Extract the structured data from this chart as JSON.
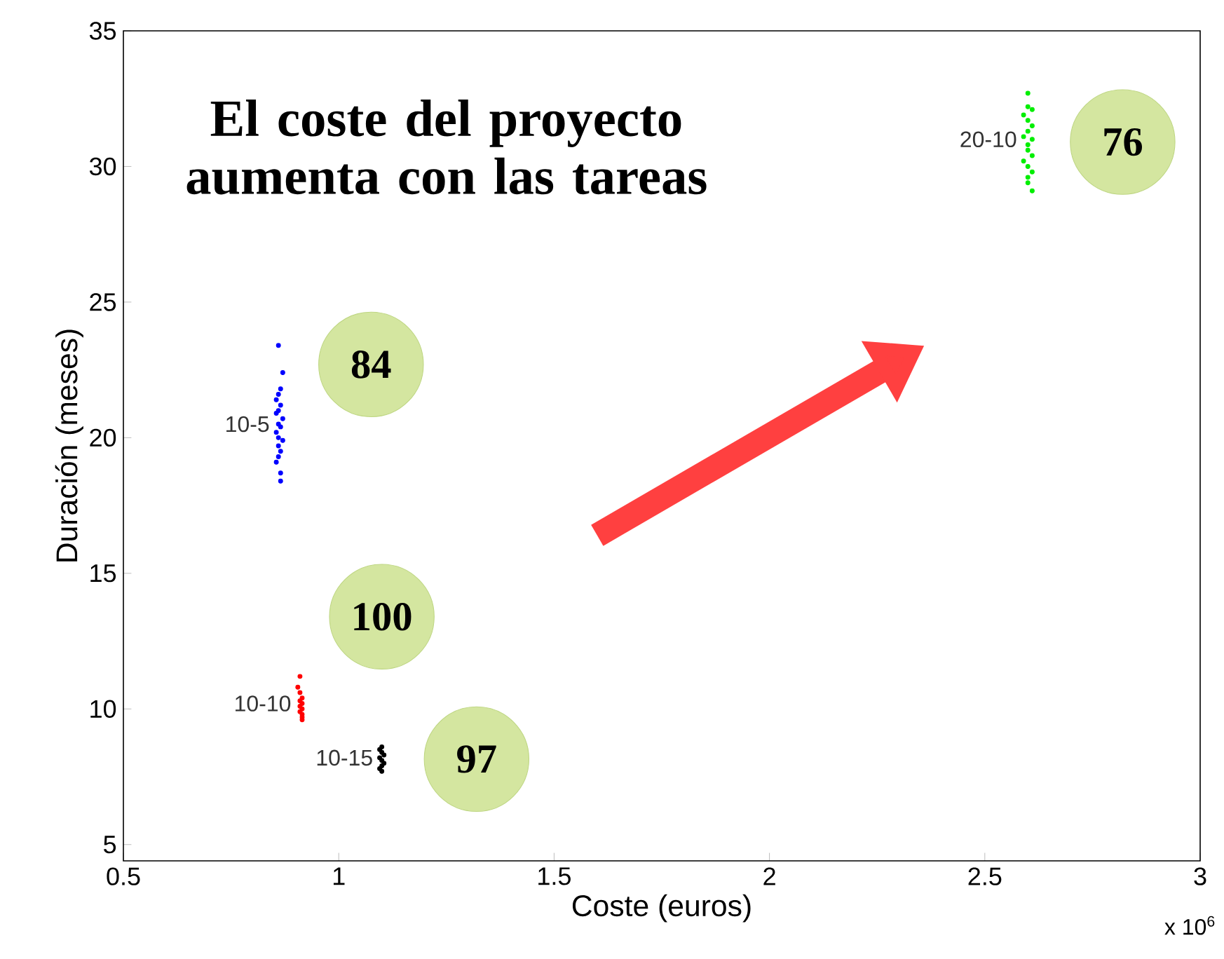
{
  "chart_data": {
    "type": "scatter",
    "title": "El coste del proyecto aumenta con las tareas",
    "xlabel": "Coste (euros)",
    "ylabel": "Duración (meses)",
    "xlim": [
      0.5,
      3
    ],
    "ylim": [
      4.4,
      35
    ],
    "xticks": [
      0.5,
      1,
      1.5,
      2,
      2.5,
      3
    ],
    "yticks": [
      5,
      10,
      15,
      20,
      25,
      30,
      35
    ],
    "grid": false,
    "marker": "circle",
    "series": [
      {
        "name": "10-5",
        "color": "#0000ff",
        "x": [
          0.86,
          0.87,
          0.865,
          0.86,
          0.855,
          0.865,
          0.86,
          0.855,
          0.87,
          0.86,
          0.865,
          0.855,
          0.86,
          0.87,
          0.86,
          0.865,
          0.86,
          0.855,
          0.865,
          0.865
        ],
        "values": [
          23.4,
          22.4,
          21.8,
          21.6,
          21.4,
          21.2,
          21.0,
          20.9,
          20.7,
          20.5,
          20.4,
          20.2,
          20.0,
          19.9,
          19.7,
          19.5,
          19.3,
          19.1,
          18.7,
          18.4
        ]
      },
      {
        "name": "10-10",
        "color": "#ff0000",
        "x": [
          0.91,
          0.905,
          0.91,
          0.915,
          0.91,
          0.915,
          0.91,
          0.915,
          0.91,
          0.915,
          0.915,
          0.915
        ],
        "values": [
          11.2,
          10.8,
          10.6,
          10.4,
          10.3,
          10.2,
          10.1,
          10.0,
          9.9,
          9.8,
          9.7,
          9.6
        ]
      },
      {
        "name": "10-15",
        "color": "#000000",
        "x": [
          1.1,
          1.095,
          1.1,
          1.105,
          1.095,
          1.1,
          1.105,
          1.1,
          1.095,
          1.1
        ],
        "values": [
          8.6,
          8.5,
          8.4,
          8.3,
          8.2,
          8.1,
          8.0,
          7.9,
          7.8,
          7.7
        ]
      },
      {
        "name": "20-10",
        "color": "#00ee00",
        "x": [
          2.6,
          2.6,
          2.61,
          2.59,
          2.6,
          2.61,
          2.6,
          2.59,
          2.61,
          2.6,
          2.6,
          2.61,
          2.59,
          2.6,
          2.61,
          2.6,
          2.6,
          2.61
        ],
        "values": [
          32.7,
          32.2,
          32.1,
          31.9,
          31.7,
          31.5,
          31.3,
          31.1,
          31.0,
          30.8,
          30.6,
          30.4,
          30.2,
          30.0,
          29.8,
          29.6,
          29.4,
          29.1
        ]
      }
    ],
    "annotations": [
      "84",
      "100",
      "97",
      "76",
      "x 10$^{6}$"
    ]
  }
}
